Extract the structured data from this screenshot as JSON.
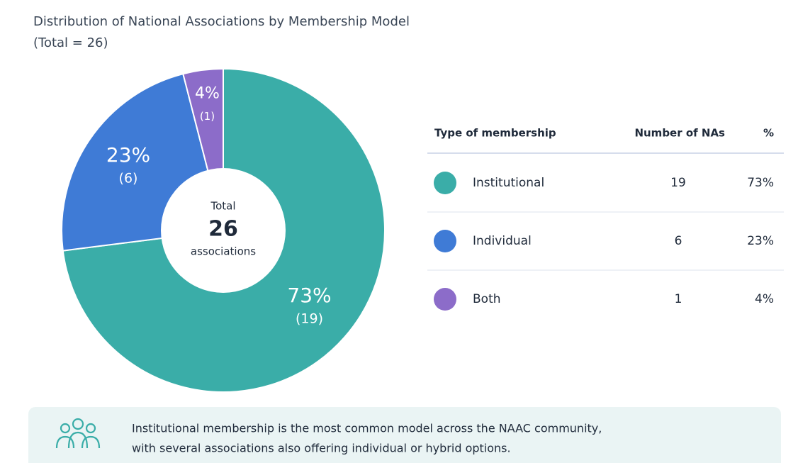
{
  "chart_data": {
    "type": "donut",
    "title": "Distribution of National Associations by Membership Model",
    "subtitle": "(Total = 26)",
    "categories": [
      "Institutional",
      "Individual",
      "Both"
    ],
    "values": [
      73,
      23,
      4
    ],
    "value_labels": [
      "73%",
      "23%",
      "4%"
    ],
    "count_labels": [
      "(19)",
      "(6)",
      "(1)"
    ],
    "colors": [
      "#3aada8",
      "#3f7bd6",
      "#8c6cc9"
    ],
    "center_label": {
      "top": "Total",
      "value": "26",
      "bottom": "associations"
    }
  },
  "table": {
    "headers": [
      "Type of membership",
      "Number of NAs",
      "%"
    ],
    "rows": [
      [
        "Institutional",
        "19",
        "73%"
      ],
      [
        "Individual",
        "6",
        "23%"
      ],
      [
        "Both",
        "1",
        "4%"
      ]
    ]
  },
  "note": {
    "lines": [
      "Institutional membership is the most common model across the NAAC community,",
      "with several associations also offering individual or hybrid options."
    ]
  }
}
